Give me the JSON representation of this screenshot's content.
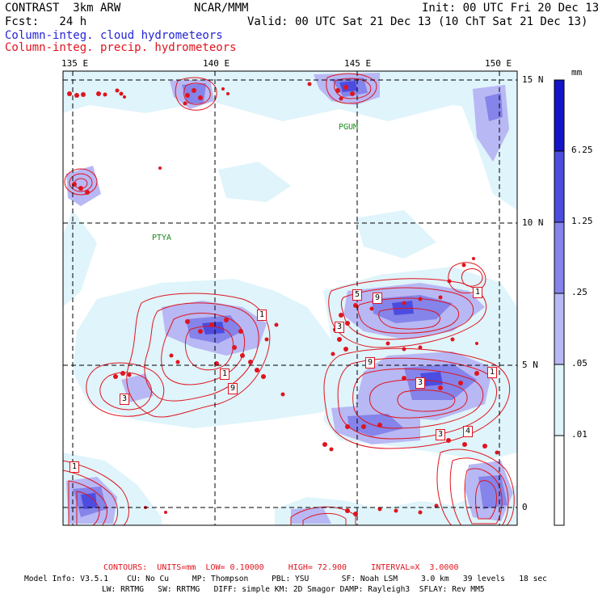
{
  "header": {
    "left_line1": "CONTRAST  3km ARW",
    "center_line1": "NCAR/MMM",
    "right_line1": "Init: 00 UTC Fri 20 Dec 13",
    "left_line2": "Fcst:   24 h",
    "right_line2": "Valid: 00 UTC Sat 21 Dec 13 (10 ChT Sat 21 Dec 13)",
    "field_blue": "Column-integ. cloud hydrometeors",
    "field_red": "Column-integ. precip. hydrometeors"
  },
  "map": {
    "lon_labels": [
      "135 E",
      "140 E",
      "145 E",
      "150 E"
    ],
    "lat_labels": [
      "15 N",
      "10 N",
      "5 N",
      "0"
    ],
    "stations": [
      "PGUM",
      "PTYA"
    ],
    "contour_box_labels": [
      "1",
      "5",
      "9",
      "1",
      "1",
      "9",
      "3",
      "9",
      "3",
      "1",
      "3",
      "4",
      "3",
      "1"
    ],
    "colors": {
      "contour": "#e0141e",
      "shade_01": "#dff4fb",
      "shade_05": "#b8b8f4",
      "shade_25": "#8484ea",
      "shade_125": "#4c4ce0",
      "shade_625": "#1414c8",
      "grid": "#000000"
    }
  },
  "colorbar": {
    "unit": "mm",
    "labels": [
      "6.25",
      "1.25",
      ".25",
      ".05",
      ".01"
    ],
    "colors": [
      "#1414c8",
      "#4c4ce0",
      "#8484ea",
      "#b8b8f4",
      "#dff4fb",
      "#ffffff"
    ]
  },
  "footer": {
    "contours": "CONTOURS:  UNITS=mm  LOW= 0.10000     HIGH= 72.900     INTERVAL=X  3.0000",
    "model_line1": "Model Info: V3.5.1    CU: No Cu     MP: Thompson     PBL: YSU       SF: Noah LSM     3.0 km   39 levels   18 sec",
    "model_line2": "LW: RRTMG   SW: RRTMG   DIFF: simple KM: 2D Smagor DAMP: Rayleigh3  SFLAY: Rev MM5"
  }
}
